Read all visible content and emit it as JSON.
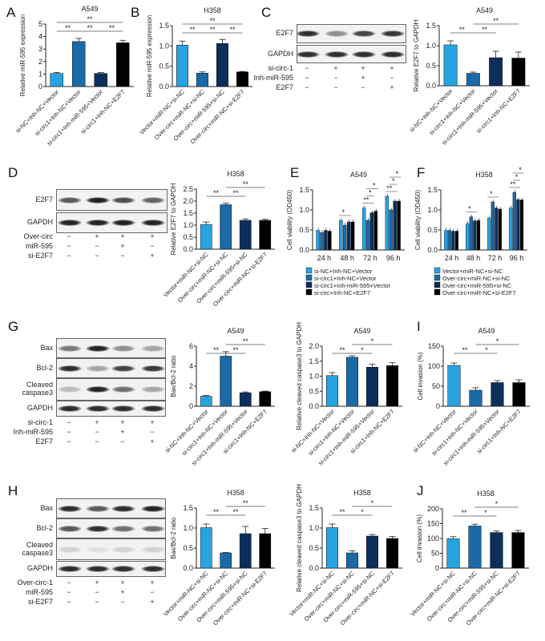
{
  "panel_letters": [
    "A",
    "B",
    "C",
    "D",
    "E",
    "F",
    "G",
    "H",
    "I",
    "J"
  ],
  "colors": {
    "series1": "#29a3e0",
    "series2": "#1a6aa8",
    "series3": "#0b2f5a",
    "series4": "#000000"
  },
  "blots": [
    {
      "name": "C",
      "rows": [
        {
          "label": "E2F7",
          "bands": [
            0.9,
            0.45,
            0.8,
            0.85
          ]
        },
        {
          "label": "GAPDH",
          "bands": [
            0.9,
            0.9,
            0.9,
            0.9
          ]
        }
      ],
      "conditions": [
        {
          "label": "si-circ-1",
          "signs": [
            "−",
            "+",
            "+",
            "+"
          ]
        },
        {
          "label": "Inh-miR-595",
          "signs": [
            "−",
            "−",
            "+",
            "−"
          ]
        },
        {
          "label": "E2F7",
          "signs": [
            "−",
            "−",
            "−",
            "+"
          ]
        }
      ]
    },
    {
      "name": "D",
      "rows": [
        {
          "label": "E2F7",
          "bands": [
            0.7,
            0.95,
            0.75,
            0.65
          ]
        },
        {
          "label": "GAPDH",
          "bands": [
            0.95,
            0.95,
            0.95,
            0.95
          ]
        }
      ],
      "conditions": [
        {
          "label": "Over-circ",
          "signs": [
            "−",
            "+",
            "+",
            "+"
          ]
        },
        {
          "label": "miR-595",
          "signs": [
            "−",
            "−",
            "+",
            "−"
          ]
        },
        {
          "label": "si-E2F7",
          "signs": [
            "−",
            "−",
            "−",
            "+"
          ]
        }
      ]
    },
    {
      "name": "G",
      "rows": [
        {
          "label": "Bax",
          "bands": [
            0.55,
            0.95,
            0.45,
            0.35
          ]
        },
        {
          "label": "Bcl-2",
          "bands": [
            0.9,
            0.35,
            0.8,
            0.85
          ]
        },
        {
          "label": "Cleaved caspase3",
          "bands": [
            0.25,
            0.95,
            0.6,
            0.35
          ]
        },
        {
          "label": "GAPDH",
          "bands": [
            0.9,
            0.9,
            0.9,
            0.9
          ]
        }
      ],
      "conditions": [
        {
          "label": "si-circ-1",
          "signs": [
            "−",
            "+",
            "+",
            "+"
          ]
        },
        {
          "label": "Inh-miR-595",
          "signs": [
            "−",
            "−",
            "+",
            "−"
          ]
        },
        {
          "label": "E2F7",
          "signs": [
            "−",
            "−",
            "−",
            "+"
          ]
        }
      ]
    },
    {
      "name": "H",
      "rows": [
        {
          "label": "Bax",
          "bands": [
            0.9,
            0.7,
            0.9,
            0.95
          ]
        },
        {
          "label": "Bcl-2",
          "bands": [
            0.7,
            0.9,
            0.6,
            0.6
          ]
        },
        {
          "label": "Cleaved caspase3",
          "bands": [
            0.15,
            0.08,
            0.15,
            0.15
          ]
        },
        {
          "label": "GAPDH",
          "bands": [
            0.9,
            0.9,
            0.9,
            0.9
          ]
        }
      ],
      "conditions": [
        {
          "label": "Over-circ-1",
          "signs": [
            "−",
            "+",
            "+",
            "+"
          ]
        },
        {
          "label": "miR-595",
          "signs": [
            "−",
            "−",
            "+",
            "−"
          ]
        },
        {
          "label": "si-E2F7",
          "signs": [
            "−",
            "−",
            "−",
            "+"
          ]
        }
      ]
    }
  ],
  "chart_data": [
    {
      "id": "A",
      "type": "bar",
      "title": "A549",
      "ylabel": "Relative miR-595 expression",
      "ylim": [
        0,
        5
      ],
      "yticks": [
        "0",
        "1",
        "2",
        "3",
        "4",
        "5"
      ],
      "categories": [
        "si-NC+Inh-NC+Vector",
        "si-circ1+Inh-NC+Vector",
        "si-circ1+Inh-miR-595+Vector",
        "si-circ1+Inh-NC+E2F7"
      ],
      "values": [
        1.05,
        3.6,
        1.05,
        3.5
      ],
      "errors": [
        0.08,
        0.25,
        0.07,
        0.2
      ],
      "significance": [
        [
          0,
          1,
          "**"
        ],
        [
          1,
          2,
          "**"
        ],
        [
          2,
          3,
          "**"
        ],
        [
          0,
          3,
          "**"
        ]
      ]
    },
    {
      "id": "B",
      "type": "bar",
      "title": "H358",
      "ylabel": "Relative miR-595 expression",
      "ylim": [
        0,
        1.5
      ],
      "yticks": [
        "0.0",
        "0.5",
        "1.0",
        "1.5"
      ],
      "categories": [
        "Vector+miR-NC+si-NC",
        "Over-circ+miR-NC+si-NC",
        "Over-circ+miR-595+si-NC",
        "Over-circ+miR-NC+si-E2F7"
      ],
      "values": [
        1.02,
        0.33,
        1.06,
        0.36
      ],
      "errors": [
        0.1,
        0.03,
        0.1,
        0.01
      ],
      "significance": [
        [
          0,
          1,
          "**"
        ],
        [
          1,
          2,
          "**"
        ],
        [
          2,
          3,
          "**"
        ],
        [
          0,
          3,
          "**"
        ]
      ]
    },
    {
      "id": "C",
      "type": "bar",
      "title": "A549",
      "ylabel": "Relative E2F7 to GAPDH",
      "ylim": [
        0,
        1.5
      ],
      "yticks": [
        "0.0",
        "0.5",
        "1.0",
        "1.5"
      ],
      "categories": [
        "si-NC+Inh-NC+Vector",
        "si-circ1+Inh-NC+Vector",
        "si-circ1+Inh-miR-595+Vector",
        "si-circ1+Inh-NC+E2F7"
      ],
      "values": [
        1.02,
        0.31,
        0.7,
        0.69
      ],
      "errors": [
        0.1,
        0.03,
        0.16,
        0.15
      ],
      "significance": [
        [
          0,
          1,
          "**"
        ],
        [
          1,
          2,
          "**"
        ],
        [
          1,
          3,
          "**"
        ]
      ]
    },
    {
      "id": "D",
      "type": "bar",
      "title": "H358",
      "ylabel": "Relative E2F7 to GAPDH",
      "ylim": [
        0,
        2.5
      ],
      "yticks": [
        "0.0",
        "0.5",
        "1.0",
        "1.5",
        "2.0",
        "2.5"
      ],
      "categories": [
        "Vector+miR-NC+si-NC",
        "Over-circ+miR-NC+si-NC",
        "Over-circ+miR-595+si-NC",
        "Over-circ+miR-NC+si-E2F7"
      ],
      "values": [
        1.03,
        1.85,
        1.2,
        1.2
      ],
      "errors": [
        0.1,
        0.06,
        0.06,
        0.04
      ],
      "significance": [
        [
          0,
          1,
          "**"
        ],
        [
          1,
          2,
          "**"
        ],
        [
          1,
          3,
          "**"
        ]
      ]
    },
    {
      "id": "E",
      "type": "bar",
      "title": "A549",
      "ylabel": "Cell viability (OD450)",
      "ylim": [
        0,
        1.5
      ],
      "yticks": [
        "0.0",
        "0.5",
        "1.0",
        "1.5"
      ],
      "categories": [
        "24 h",
        "48 h",
        "72 h",
        "96 h"
      ],
      "series": [
        {
          "name": "si-NC+Inh-NC+Vector",
          "values": [
            0.49,
            0.74,
            1.05,
            1.34
          ]
        },
        {
          "name": "si-circ1+Inh-NC+Vector",
          "values": [
            0.44,
            0.62,
            0.74,
            1.0
          ]
        },
        {
          "name": "si-circ1+Inh-miR-595+Vector",
          "values": [
            0.49,
            0.7,
            0.93,
            1.22
          ]
        },
        {
          "name": "si-circ+Inh-NC+E2F7",
          "values": [
            0.47,
            0.7,
            0.97,
            1.22
          ]
        }
      ],
      "group_significance": [
        [
          "*"
        ],
        [
          "**",
          "*",
          "*"
        ],
        [
          "**",
          "*",
          "*"
        ]
      ],
      "legend": "bottom"
    },
    {
      "id": "F",
      "type": "bar",
      "title": "H358",
      "ylabel": "Cell viability (OD450)",
      "ylim": [
        0,
        1.5
      ],
      "yticks": [
        "0.0",
        "0.5",
        "1.0",
        "1.5"
      ],
      "categories": [
        "24 h",
        "48 h",
        "72 h",
        "96 h"
      ],
      "series": [
        {
          "name": "Vector+miR-NC+si-NC",
          "values": [
            0.49,
            0.66,
            0.8,
            1.05
          ]
        },
        {
          "name": "Over-circ+miR-NC+si-NC",
          "values": [
            0.49,
            0.83,
            1.2,
            1.44
          ]
        },
        {
          "name": "Over-circ+miR-595+si-NC",
          "values": [
            0.47,
            0.73,
            1.05,
            1.26
          ]
        },
        {
          "name": "Over-circ+miR-NC+si-E2F7",
          "values": [
            0.47,
            0.74,
            1.02,
            1.25
          ]
        }
      ],
      "group_significance": [
        [
          "*"
        ],
        [
          "*"
        ],
        [
          "**",
          "*",
          "*"
        ]
      ],
      "legend": "bottom"
    },
    {
      "id": "G1",
      "type": "bar",
      "title": "A549",
      "ylabel": "Bax/Bcl-2 ratio",
      "ylim": [
        0,
        6
      ],
      "yticks": [
        "0",
        "2",
        "4",
        "6"
      ],
      "categories": [
        "si-NC+Inh-NC+Vector",
        "si-circ1+Inh-NC+Vector",
        "si-circ1+Inh-miR-595+Vector",
        "si-circ1+Inh-NC+E2F7"
      ],
      "values": [
        1.0,
        5.0,
        1.35,
        1.45
      ],
      "errors": [
        0.08,
        0.45,
        0.08,
        0.06
      ],
      "significance": [
        [
          0,
          1,
          "**"
        ],
        [
          1,
          2,
          "**"
        ],
        [
          1,
          3,
          "**"
        ]
      ]
    },
    {
      "id": "G2",
      "type": "bar",
      "title": "A549",
      "ylabel": "Relative cleaved caspase3 to GAPDH",
      "ylim": [
        0,
        2
      ],
      "yticks": [
        "0.0",
        "0.5",
        "1.0",
        "1.5",
        "2.0"
      ],
      "categories": [
        "si-NC+Inh-NC+Vector",
        "si-circ1+Inh-NC+Vector",
        "si-circ1+Inh-miR-595+Vector",
        "si-circ1+Inh-NC+E2F7"
      ],
      "values": [
        1.02,
        1.63,
        1.3,
        1.35
      ],
      "errors": [
        0.1,
        0.05,
        0.1,
        0.1
      ],
      "significance": [
        [
          0,
          1,
          "**"
        ],
        [
          1,
          2,
          "*"
        ],
        [
          1,
          3,
          "*"
        ]
      ]
    },
    {
      "id": "I",
      "type": "bar",
      "title": "A549",
      "ylabel": "Cell invasion (%)",
      "ylim": [
        0,
        150
      ],
      "yticks": [
        "0",
        "50",
        "100",
        "150"
      ],
      "categories": [
        "si-NC+Inh-NC+Vector",
        "si-circ1+Inh-NC+Vector",
        "si-circ1+Inh-miR-595+Vector",
        "si-circ1+Inh-NC+E2F7"
      ],
      "values": [
        102,
        40,
        59,
        59
      ],
      "errors": [
        6,
        6,
        5,
        7
      ],
      "significance": [
        [
          0,
          1,
          "**"
        ],
        [
          1,
          2,
          "*"
        ],
        [
          1,
          3,
          "*"
        ]
      ]
    },
    {
      "id": "H1",
      "type": "bar",
      "title": "H358",
      "ylabel": "Bax/Bcl-2 ratio",
      "ylim": [
        0,
        1.5
      ],
      "yticks": [
        "0.0",
        "0.5",
        "1.0",
        "1.5"
      ],
      "categories": [
        "Vector+miR-NC+si-NC",
        "Over-circ+miR-NC+si-NC",
        "Over-circ+miR-595+si-NC",
        "Over-circ+miR-NC+si-E2F7"
      ],
      "values": [
        1.01,
        0.38,
        0.86,
        0.86
      ],
      "errors": [
        0.09,
        0.01,
        0.18,
        0.13
      ],
      "significance": [
        [
          0,
          1,
          "**"
        ],
        [
          1,
          2,
          "**"
        ],
        [
          1,
          3,
          "**"
        ]
      ]
    },
    {
      "id": "H2",
      "type": "bar",
      "title": "H358",
      "ylabel": "Relative cleaved caspase3 to GAPDH",
      "ylim": [
        0,
        1.5
      ],
      "yticks": [
        "0.0",
        "0.5",
        "1.0",
        "1.5"
      ],
      "categories": [
        "Vector+miR-NC+si-NC",
        "Over-circ+miR-NC+si-NC",
        "Over-circ+miR-595+si-NC",
        "Over-circ+miR-NC+si-E2F7"
      ],
      "values": [
        1.01,
        0.38,
        0.8,
        0.74
      ],
      "errors": [
        0.09,
        0.05,
        0.04,
        0.05
      ],
      "significance": [
        [
          0,
          1,
          "**"
        ],
        [
          1,
          2,
          "*"
        ],
        [
          1,
          3,
          "*"
        ]
      ]
    },
    {
      "id": "J",
      "type": "bar",
      "title": "H358",
      "ylabel": "Cell invasion (%)",
      "ylim": [
        0,
        200
      ],
      "yticks": [
        "0",
        "50",
        "100",
        "150",
        "200"
      ],
      "categories": [
        "Vector+miR-NC+si-NC",
        "Over-circ+miR-NC+si-NC",
        "Over-circ+miR-595+si-NC",
        "Over-circ+miR-NC+si-E2F7"
      ],
      "values": [
        99,
        142,
        120,
        120
      ],
      "errors": [
        7,
        6,
        5,
        7
      ],
      "significance": [
        [
          0,
          1,
          "**"
        ],
        [
          1,
          2,
          "*"
        ],
        [
          1,
          3,
          "*"
        ]
      ]
    }
  ]
}
